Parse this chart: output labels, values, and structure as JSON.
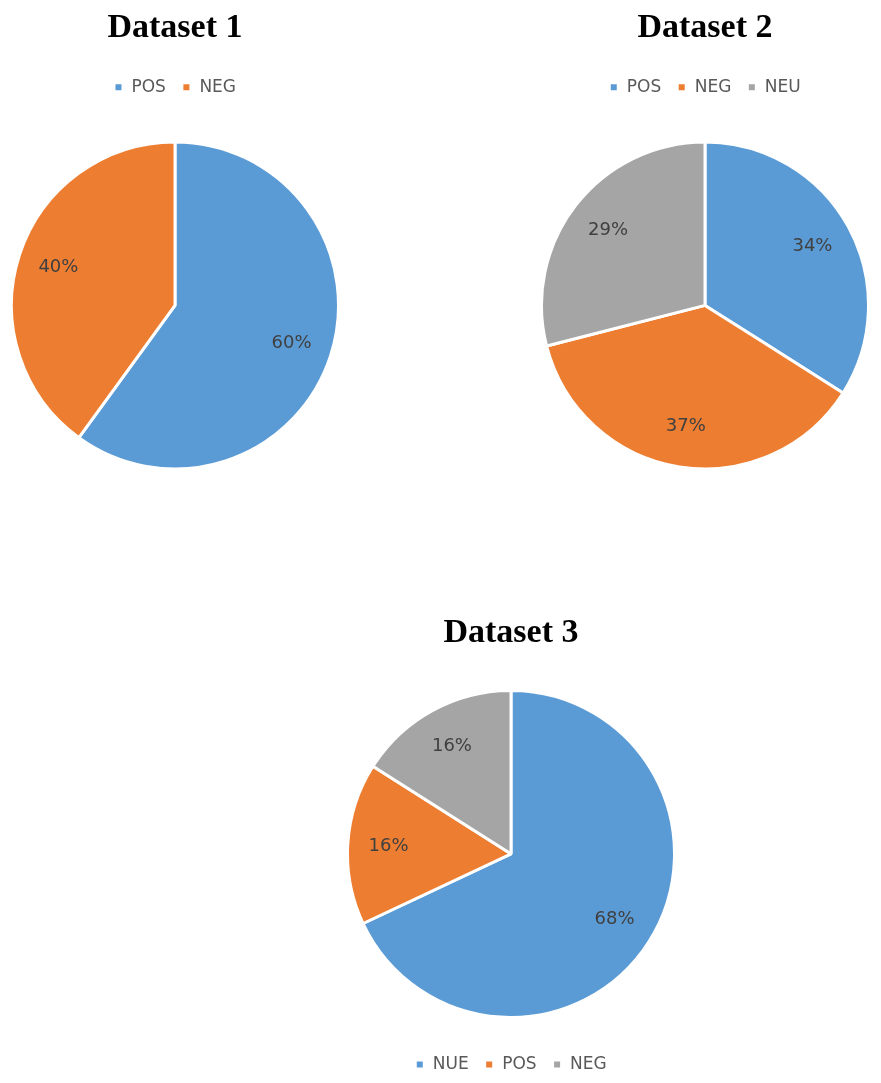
{
  "chart_data": [
    {
      "type": "pie",
      "title": "Dataset 1",
      "categories": [
        "POS",
        "NEG"
      ],
      "values": [
        60,
        40
      ],
      "colors": [
        "#5b9bd5",
        "#ed7d31"
      ],
      "value_labels": [
        "60%",
        "40%"
      ],
      "legend": "top"
    },
    {
      "type": "pie",
      "title": "Dataset 2",
      "categories": [
        "POS",
        "NEG",
        "NEU"
      ],
      "values": [
        34,
        37,
        29
      ],
      "colors": [
        "#5b9bd5",
        "#ed7d31",
        "#a5a5a5"
      ],
      "value_labels": [
        "34%",
        "37%",
        "29%"
      ],
      "legend": "top"
    },
    {
      "type": "pie",
      "title": "Dataset 3",
      "categories": [
        "NUE",
        "POS",
        "NEG"
      ],
      "values": [
        68,
        16,
        16
      ],
      "colors": [
        "#5b9bd5",
        "#ed7d31",
        "#a5a5a5"
      ],
      "value_labels": [
        "68%",
        "16%",
        "16%"
      ],
      "legend": "bottom"
    }
  ]
}
